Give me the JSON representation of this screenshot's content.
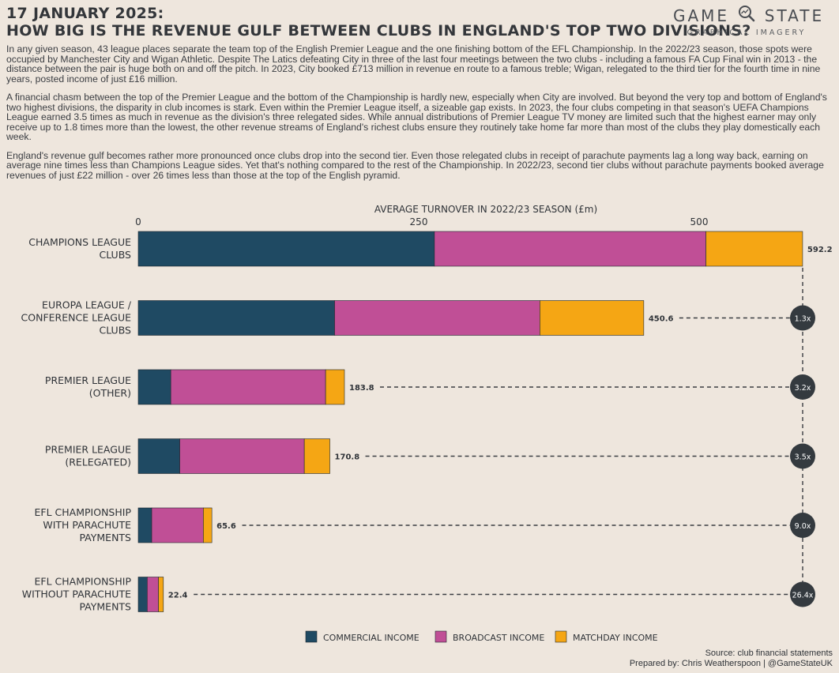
{
  "header": {
    "date": "17 JANUARY 2025:",
    "title": "HOW BIG IS THE REVENUE GULF BETWEEN CLUBS IN ENGLAND'S TOP TWO DIVISIONS?"
  },
  "logo": {
    "name_left": "GAME",
    "name_right": "STATE",
    "tagline": "GRAPHICAL IMAGERY",
    "icon": "magnifier-icon"
  },
  "intro": {
    "paragraphs": [
      "In any given season, 43 league places separate the team top of the English Premier League and the one finishing bottom of the EFL Championship. In the 2022/23 season, those spots were occupied by Manchester City and Wigan Athletic. Despite The Latics defeating City in three of the last four meetings between the two clubs - including a famous FA Cup Final win in 2013 - the distance between the pair is huge both on and off the pitch. In 2023, City booked £713 million in revenue en route to a famous treble; Wigan, relegated to the third tier for the fourth time in nine years, posted income of just £16 million.",
      "A financial chasm between the top of the Premier League and the bottom of the Championship is hardly new, especially when City are involved. But beyond the very top and bottom of England's two highest divisions, the disparity in club incomes is stark. Even within the Premier League itself, a sizeable gap exists. In 2023, the four clubs competing in that season's UEFA Champions League earned 3.5 times as much in revenue as the division's three relegated sides. While annual distributions of Premier League TV money are limited such that the highest earner may only receive up to 1.8 times more than the lowest, the other revenue streams of England's richest clubs ensure they routinely take home far more than most of the clubs they play domestically each week.",
      "England's revenue gulf becomes rather more pronounced once clubs drop into the second tier. Even those relegated clubs in receipt of parachute payments lag a long way back, earning on average nine times less than Champions League sides. Yet that's nothing compared to the rest of the Championship. In 2022/23, second tier clubs without parachute payments booked average revenues of just £22 million - over 26 times less than those at the top of the English pyramid."
    ]
  },
  "chart_data": {
    "type": "bar",
    "orientation": "horizontal",
    "stacked": true,
    "title": "AVERAGE TURNOVER IN 2022/23 SEASON (£m)",
    "xlim": [
      0,
      600
    ],
    "ticks": [
      0,
      250,
      500
    ],
    "tick_labels": [
      "0",
      "250",
      "500"
    ],
    "categories": [
      [
        "CHAMPIONS LEAGUE",
        "CLUBS"
      ],
      [
        "EUROPA LEAGUE /",
        "CONFERENCE LEAGUE",
        "CLUBS"
      ],
      [
        "PREMIER LEAGUE",
        "(OTHER)"
      ],
      [
        "PREMIER LEAGUE",
        "(RELEGATED)"
      ],
      [
        "EFL CHAMPIONSHIP",
        "WITH PARACHUTE",
        "PAYMENTS"
      ],
      [
        "EFL CHAMPIONSHIP",
        "WITHOUT PARACHUTE",
        "PAYMENTS"
      ]
    ],
    "series": [
      {
        "name": "COMMERCIAL INCOME",
        "color": "#1f4a63",
        "values": [
          264,
          175,
          29,
          37,
          12,
          8
        ]
      },
      {
        "name": "BROADCAST INCOME",
        "color": "#c04f96",
        "values": [
          242,
          183,
          138,
          111,
          46,
          10
        ]
      },
      {
        "name": "MATCHDAY INCOME",
        "color": "#f5a614",
        "values": [
          86.2,
          92.6,
          16.8,
          22.8,
          7.6,
          4.4
        ]
      }
    ],
    "totals": [
      "592.2",
      "450.6",
      "183.8",
      "170.8",
      "65.6",
      "22.4"
    ],
    "multipliers": [
      "",
      "1.3x",
      "3.2x",
      "3.5x",
      "9.0x",
      "26.4x"
    ],
    "legend_position": "bottom"
  },
  "colors": {
    "background": "#eee6dd",
    "bubble": "#343a3f",
    "text": "#2f3338",
    "bar_edge": "#1e272d"
  },
  "footer": {
    "source": "Source: club financial statements",
    "credit": "Prepared by: Chris Weatherspoon | @GameStateUK"
  }
}
